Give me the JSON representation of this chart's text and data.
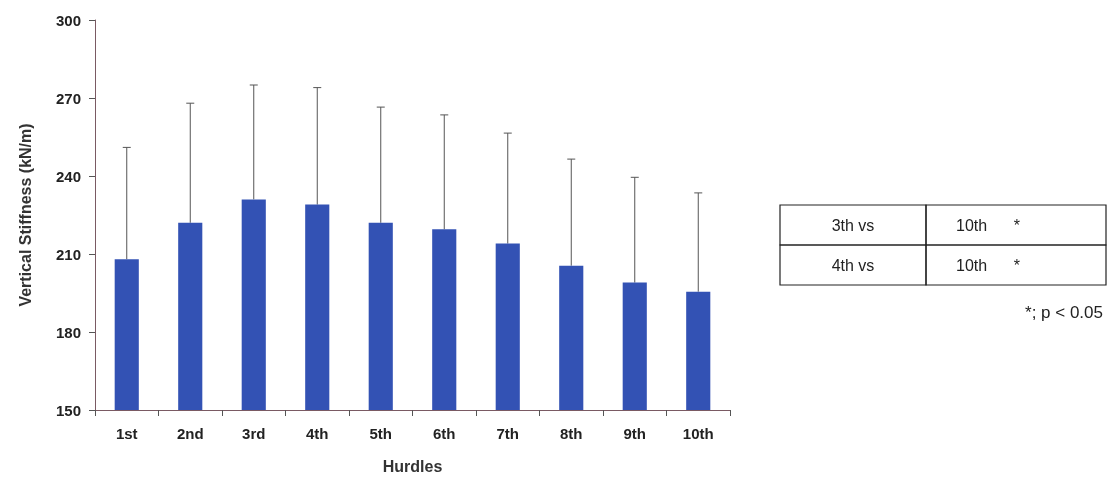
{
  "chart_data": {
    "type": "bar",
    "xlabel": "Hurdles",
    "ylabel": "Vertical Stiffness (kN/m)",
    "categories": [
      "1st",
      "2nd",
      "3rd",
      "4th",
      "5th",
      "6th",
      "7th",
      "8th",
      "9th",
      "10th"
    ],
    "values": [
      208,
      222,
      231,
      229,
      222,
      219.5,
      214,
      205.5,
      199,
      195.5
    ],
    "errors": [
      [
        208,
        251
      ],
      [
        222,
        268
      ],
      [
        231,
        275
      ],
      [
        229,
        274
      ],
      [
        222,
        266.5
      ],
      [
        219.5,
        263.5
      ],
      [
        214,
        256.5
      ],
      [
        205.5,
        246.5
      ],
      [
        199,
        239.5
      ],
      [
        195.5,
        233.5
      ]
    ],
    "color": "#3352b4",
    "ylim": [
      150,
      300
    ],
    "yticks": [
      150,
      180,
      210,
      240,
      270,
      300
    ],
    "grid": false,
    "annotations": [
      "3th vs",
      "10th      *",
      "4th vs",
      "10th      *",
      "*; p < 0.05"
    ]
  }
}
